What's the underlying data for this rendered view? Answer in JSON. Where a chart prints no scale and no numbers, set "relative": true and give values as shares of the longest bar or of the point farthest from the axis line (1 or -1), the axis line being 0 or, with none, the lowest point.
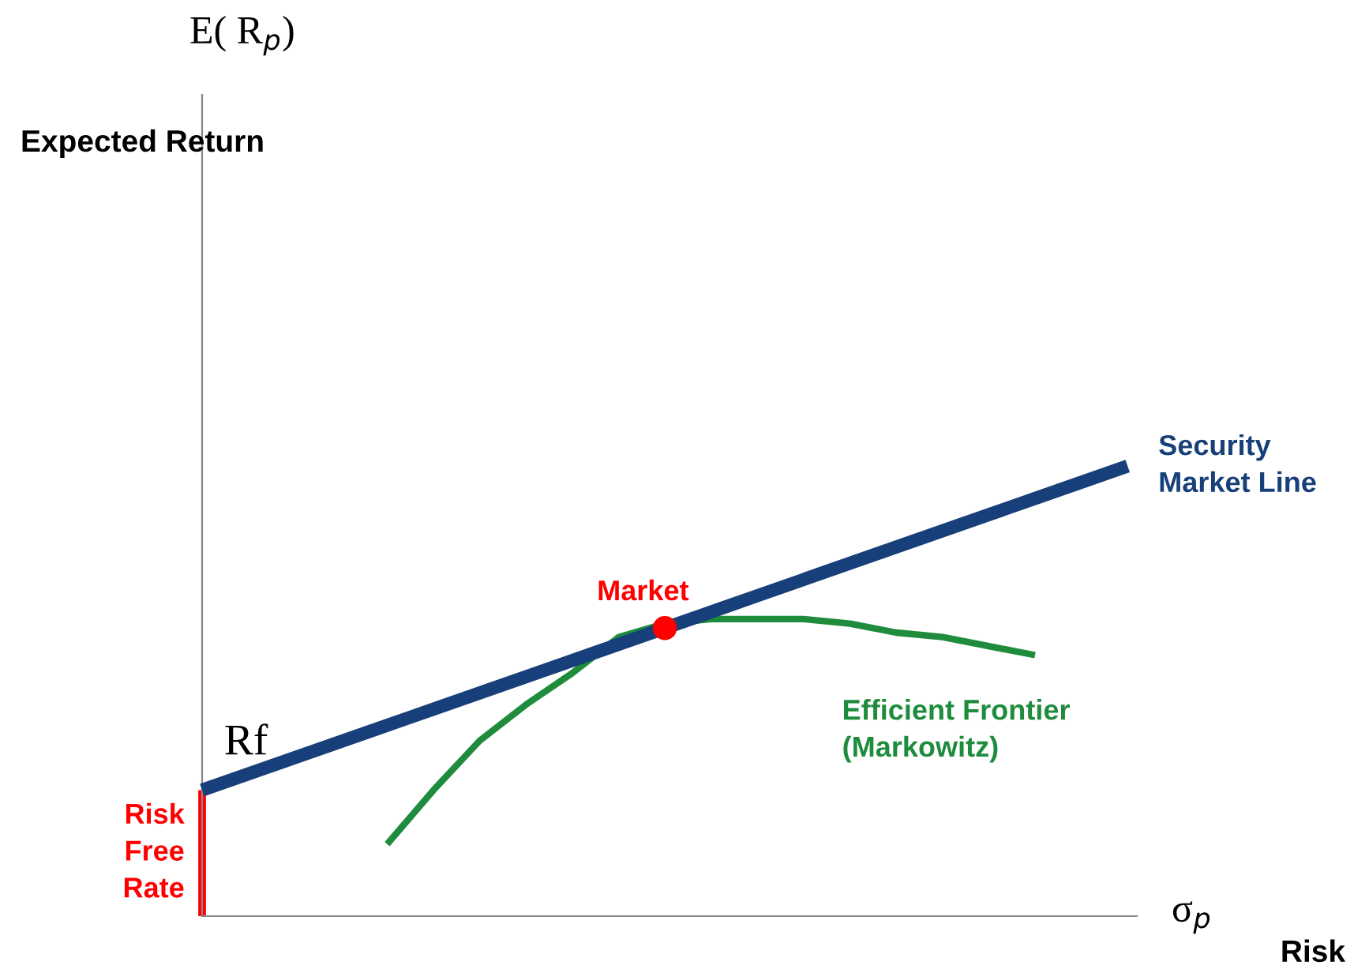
{
  "chart_data": {
    "type": "line",
    "relative": true,
    "xlabel": "Risk",
    "annotations": [
      "E( R$_{p}$)",
      "σ$_{p}$",
      "Rf",
      "Risk\nFree\nRate",
      "Expected Return"
    ],
    "categories": [
      null,
      null,
      null,
      null,
      null,
      null,
      null,
      null,
      null,
      null,
      null,
      null,
      null,
      null,
      null,
      null,
      null,
      null,
      null,
      null,
      null
    ],
    "series": [
      {
        "name": "Security\nMarket Line",
        "color": "#173f7a",
        "values": [
          0.28,
          0.316,
          0.352,
          0.388,
          0.424,
          0.46,
          0.496,
          0.532,
          0.568,
          0.604,
          0.64,
          0.676,
          0.712,
          0.748,
          0.784,
          0.82,
          0.856,
          0.892,
          0.928,
          0.964,
          1
        ]
      },
      {
        "name": "Efficient Frontier\n(Markowitz)",
        "color": "#1e8c3c",
        "values": [
          null,
          null,
          null,
          null,
          0.16,
          0.28,
          0.39,
          0.47,
          0.54,
          0.62,
          0.65,
          0.66,
          0.66,
          0.66,
          0.65,
          0.63,
          0.62,
          0.6,
          0.58,
          null,
          null
        ]
      },
      {
        "name": "Market",
        "type": "line",
        "marker": "circle",
        "color": "#ff0000",
        "values": [
          null,
          null,
          null,
          null,
          null,
          null,
          null,
          null,
          null,
          null,
          0.64,
          null,
          null,
          null,
          null,
          null,
          null,
          null,
          null,
          null,
          null
        ]
      }
    ],
    "marker": "none"
  }
}
